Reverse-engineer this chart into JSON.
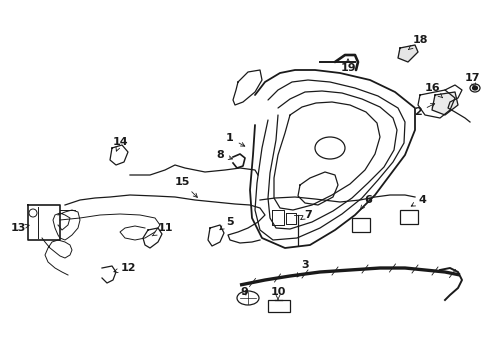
{
  "background_color": "#ffffff",
  "line_color": "#1a1a1a",
  "fig_width": 4.89,
  "fig_height": 3.6,
  "dpi": 100,
  "font_size": 8,
  "line_width": 0.9
}
